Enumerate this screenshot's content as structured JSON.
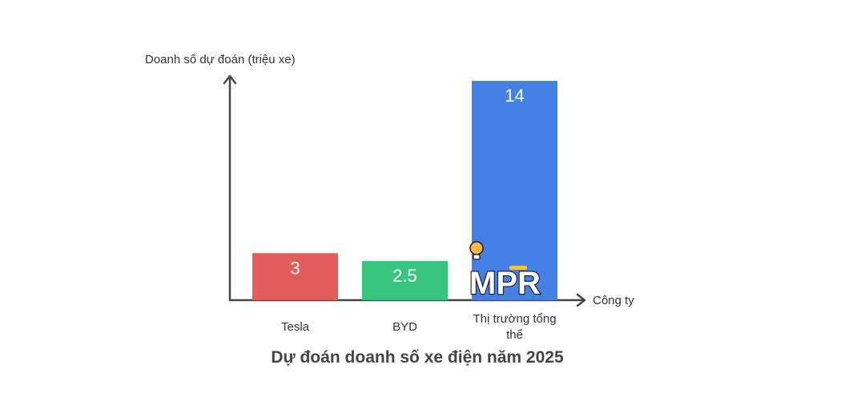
{
  "chart_data": {
    "type": "bar",
    "title": "Dự đoán doanh số xe điện năm 2025",
    "xlabel": "Công ty",
    "ylabel": "Doanh số dự đoán (triệu xe)",
    "categories": [
      "Tesla",
      "BYD",
      "Thị trường tổng thể"
    ],
    "values": [
      3,
      2.5,
      14
    ],
    "value_labels": [
      "3",
      "2.5",
      "14"
    ],
    "colors": [
      "#e35d5a",
      "#3ac57e",
      "#4581e5"
    ],
    "ylim": [
      0,
      14
    ],
    "grid": false,
    "legend": "none"
  },
  "watermark": {
    "text": "MPR",
    "icon": "lightbulb-icon"
  }
}
